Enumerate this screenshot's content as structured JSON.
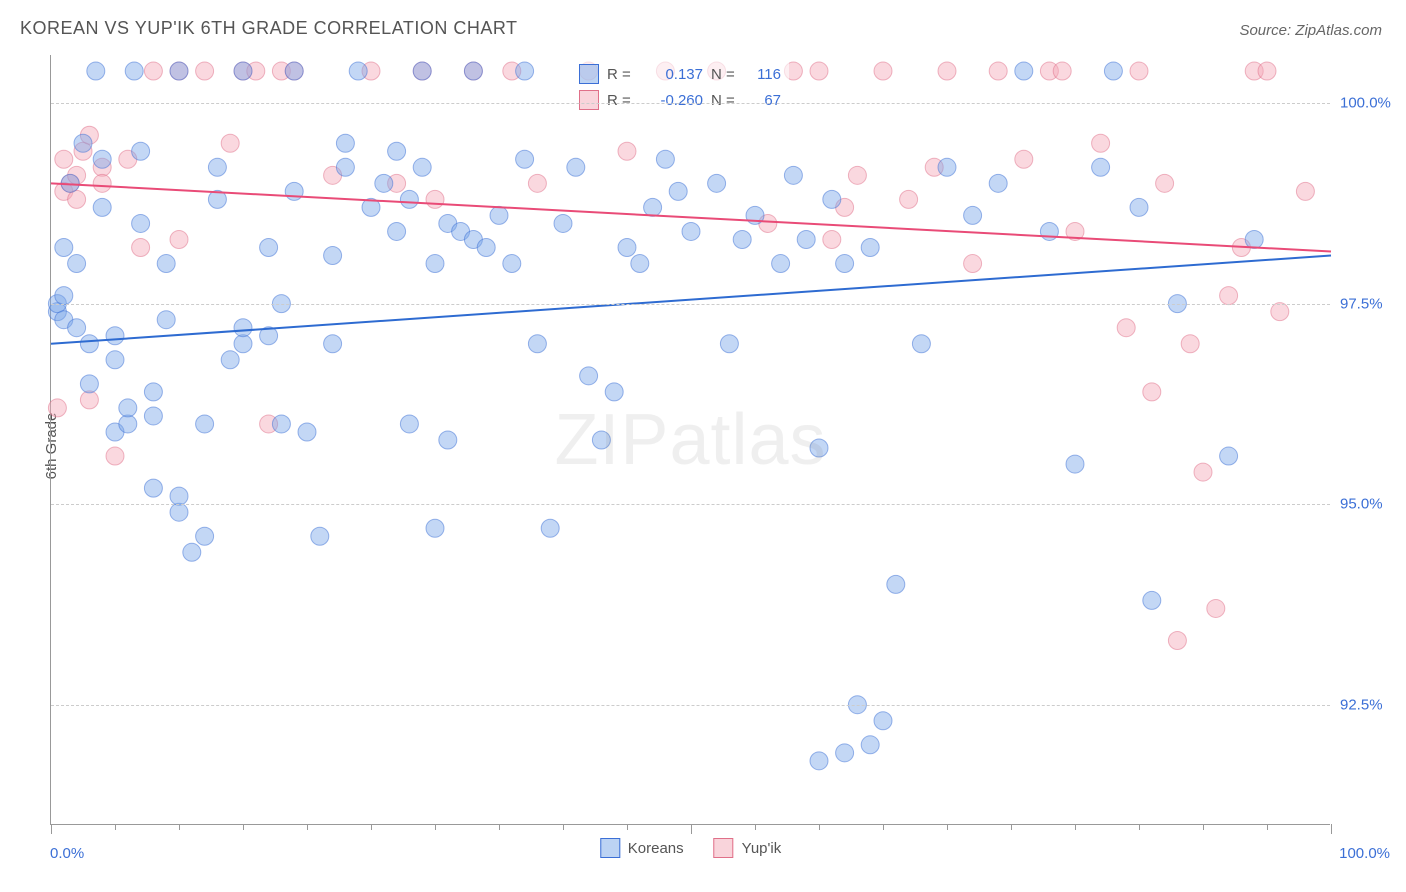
{
  "title": "KOREAN VS YUP'IK 6TH GRADE CORRELATION CHART",
  "source": "Source: ZipAtlas.com",
  "watermark_a": "ZIP",
  "watermark_b": "atlas",
  "ylabel": "6th Grade",
  "chart": {
    "type": "scatter",
    "xlim": [
      0,
      100
    ],
    "ylim": [
      91.0,
      100.6
    ],
    "x_ticks_major": [
      0,
      50,
      100
    ],
    "x_ticks_minor": [
      5,
      10,
      15,
      20,
      25,
      30,
      35,
      40,
      45,
      55,
      60,
      65,
      70,
      75,
      80,
      85,
      90,
      95
    ],
    "y_ticks": [
      92.5,
      95.0,
      97.5,
      100.0
    ],
    "y_tick_labels": [
      "92.5%",
      "95.0%",
      "97.5%",
      "100.0%"
    ],
    "x_left_label": "0.0%",
    "x_right_label": "100.0%",
    "background_color": "#ffffff",
    "grid_color": "#cccccc",
    "marker_radius": 9,
    "marker_opacity": 0.45,
    "line_width": 2,
    "series": [
      {
        "name": "Koreans",
        "color_fill": "#7aa7e8",
        "color_stroke": "#3b6fd6",
        "R": "0.137",
        "N": "116",
        "trend": {
          "x1": 0,
          "y1": 97.0,
          "x2": 100,
          "y2": 98.1
        },
        "trend_color": "#2e6bd1",
        "points": [
          [
            0.5,
            97.4
          ],
          [
            0.5,
            97.5
          ],
          [
            1,
            97.3
          ],
          [
            1,
            97.6
          ],
          [
            1,
            98.2
          ],
          [
            1.5,
            99.0
          ],
          [
            2,
            97.2
          ],
          [
            2,
            98.0
          ],
          [
            2.5,
            99.5
          ],
          [
            3,
            96.5
          ],
          [
            3,
            97.0
          ],
          [
            3.5,
            100.4
          ],
          [
            4,
            98.7
          ],
          [
            4,
            99.3
          ],
          [
            5,
            95.9
          ],
          [
            5,
            96.8
          ],
          [
            5,
            97.1
          ],
          [
            6,
            96.0
          ],
          [
            6,
            96.2
          ],
          [
            6.5,
            100.4
          ],
          [
            7,
            98.5
          ],
          [
            7,
            99.4
          ],
          [
            8,
            95.2
          ],
          [
            8,
            96.1
          ],
          [
            8,
            96.4
          ],
          [
            9,
            97.3
          ],
          [
            9,
            98.0
          ],
          [
            10,
            94.9
          ],
          [
            10,
            95.1
          ],
          [
            10,
            100.4
          ],
          [
            11,
            94.4
          ],
          [
            12,
            94.6
          ],
          [
            12,
            96.0
          ],
          [
            13,
            98.8
          ],
          [
            13,
            99.2
          ],
          [
            14,
            96.8
          ],
          [
            15,
            97.0
          ],
          [
            15,
            97.2
          ],
          [
            15,
            100.4
          ],
          [
            17,
            97.1
          ],
          [
            17,
            98.2
          ],
          [
            18,
            96.0
          ],
          [
            18,
            97.5
          ],
          [
            19,
            98.9
          ],
          [
            19,
            100.4
          ],
          [
            20,
            95.9
          ],
          [
            21,
            94.6
          ],
          [
            22,
            97.0
          ],
          [
            22,
            98.1
          ],
          [
            23,
            99.2
          ],
          [
            23,
            99.5
          ],
          [
            24,
            100.4
          ],
          [
            25,
            98.7
          ],
          [
            26,
            99.0
          ],
          [
            27,
            98.4
          ],
          [
            27,
            99.4
          ],
          [
            28,
            96.0
          ],
          [
            28,
            98.8
          ],
          [
            29,
            99.2
          ],
          [
            29,
            100.4
          ],
          [
            30,
            94.7
          ],
          [
            30,
            98.0
          ],
          [
            31,
            95.8
          ],
          [
            31,
            98.5
          ],
          [
            32,
            98.4
          ],
          [
            33,
            98.3
          ],
          [
            33,
            100.4
          ],
          [
            34,
            98.2
          ],
          [
            35,
            98.6
          ],
          [
            36,
            98.0
          ],
          [
            37,
            99.3
          ],
          [
            37,
            100.4
          ],
          [
            38,
            97.0
          ],
          [
            39,
            94.7
          ],
          [
            40,
            98.5
          ],
          [
            41,
            99.2
          ],
          [
            42,
            96.6
          ],
          [
            43,
            95.8
          ],
          [
            44,
            96.4
          ],
          [
            45,
            98.2
          ],
          [
            46,
            98.0
          ],
          [
            47,
            98.7
          ],
          [
            48,
            99.3
          ],
          [
            49,
            98.9
          ],
          [
            50,
            98.4
          ],
          [
            52,
            99.0
          ],
          [
            53,
            97.0
          ],
          [
            54,
            98.3
          ],
          [
            55,
            98.6
          ],
          [
            57,
            98.0
          ],
          [
            58,
            99.1
          ],
          [
            59,
            98.3
          ],
          [
            60,
            91.8
          ],
          [
            60,
            95.7
          ],
          [
            61,
            98.8
          ],
          [
            62,
            91.9
          ],
          [
            62,
            98.0
          ],
          [
            63,
            92.5
          ],
          [
            64,
            98.2
          ],
          [
            64,
            92.0
          ],
          [
            65,
            92.3
          ],
          [
            66,
            94.0
          ],
          [
            68,
            97.0
          ],
          [
            70,
            99.2
          ],
          [
            72,
            98.6
          ],
          [
            74,
            99.0
          ],
          [
            76,
            100.4
          ],
          [
            78,
            98.4
          ],
          [
            80,
            95.5
          ],
          [
            82,
            99.2
          ],
          [
            83,
            100.4
          ],
          [
            85,
            98.7
          ],
          [
            86,
            93.8
          ],
          [
            88,
            97.5
          ],
          [
            92,
            95.6
          ],
          [
            94,
            98.3
          ]
        ]
      },
      {
        "name": "Yup'ik",
        "color_fill": "#f4a9b8",
        "color_stroke": "#e07089",
        "R": "-0.260",
        "N": "67",
        "trend": {
          "x1": 0,
          "y1": 99.0,
          "x2": 100,
          "y2": 98.15
        },
        "trend_color": "#e94b77",
        "points": [
          [
            0.5,
            96.2
          ],
          [
            1,
            99.3
          ],
          [
            1,
            98.9
          ],
          [
            1.5,
            99.0
          ],
          [
            2,
            98.8
          ],
          [
            2,
            99.1
          ],
          [
            2.5,
            99.4
          ],
          [
            3,
            99.6
          ],
          [
            3,
            96.3
          ],
          [
            4,
            99.2
          ],
          [
            4,
            99.0
          ],
          [
            5,
            95.6
          ],
          [
            6,
            99.3
          ],
          [
            7,
            98.2
          ],
          [
            8,
            100.4
          ],
          [
            10,
            100.4
          ],
          [
            10,
            98.3
          ],
          [
            12,
            100.4
          ],
          [
            14,
            99.5
          ],
          [
            15,
            100.4
          ],
          [
            16,
            100.4
          ],
          [
            17,
            96.0
          ],
          [
            18,
            100.4
          ],
          [
            19,
            100.4
          ],
          [
            22,
            99.1
          ],
          [
            25,
            100.4
          ],
          [
            27,
            99.0
          ],
          [
            29,
            100.4
          ],
          [
            30,
            98.8
          ],
          [
            33,
            100.4
          ],
          [
            36,
            100.4
          ],
          [
            38,
            99.0
          ],
          [
            42,
            100.4
          ],
          [
            45,
            99.4
          ],
          [
            48,
            100.4
          ],
          [
            52,
            100.4
          ],
          [
            56,
            98.5
          ],
          [
            58,
            100.4
          ],
          [
            60,
            100.4
          ],
          [
            61,
            98.3
          ],
          [
            62,
            98.7
          ],
          [
            63,
            99.1
          ],
          [
            65,
            100.4
          ],
          [
            67,
            98.8
          ],
          [
            69,
            99.2
          ],
          [
            70,
            100.4
          ],
          [
            72,
            98.0
          ],
          [
            74,
            100.4
          ],
          [
            76,
            99.3
          ],
          [
            78,
            100.4
          ],
          [
            79,
            100.4
          ],
          [
            80,
            98.4
          ],
          [
            82,
            99.5
          ],
          [
            84,
            97.2
          ],
          [
            85,
            100.4
          ],
          [
            86,
            96.4
          ],
          [
            87,
            99.0
          ],
          [
            88,
            93.3
          ],
          [
            89,
            97.0
          ],
          [
            90,
            95.4
          ],
          [
            91,
            93.7
          ],
          [
            92,
            97.6
          ],
          [
            93,
            98.2
          ],
          [
            94,
            100.4
          ],
          [
            95,
            100.4
          ],
          [
            96,
            97.4
          ],
          [
            98,
            98.9
          ]
        ]
      }
    ]
  },
  "legend_top": {
    "r_label": "R =",
    "n_label": "N ="
  },
  "legend_bottom": [
    "Koreans",
    "Yup'ik"
  ]
}
